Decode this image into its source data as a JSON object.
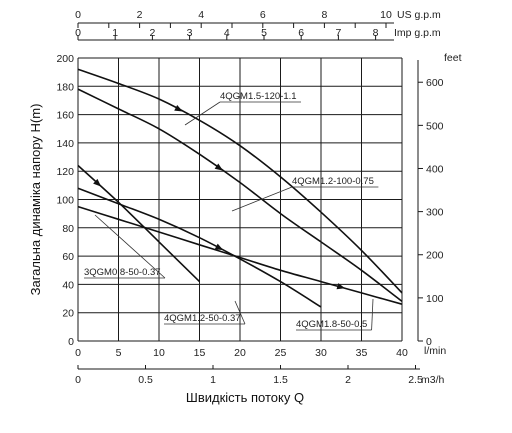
{
  "chart_data": {
    "type": "line",
    "xlabel": "Швидкість потоку Q",
    "ylabel": "Загальна динаміка напору H(m)",
    "x_unit": "l/min",
    "xlim": [
      0,
      40
    ],
    "ylim": [
      0,
      200
    ],
    "x_ticks": [
      "0",
      "5",
      "10",
      "15",
      "20",
      "25",
      "30",
      "35",
      "40"
    ],
    "y_ticks": [
      "0",
      "20",
      "40",
      "60",
      "80",
      "100",
      "120",
      "140",
      "160",
      "180",
      "200"
    ],
    "secondary_axes": {
      "us_gpm": {
        "unit": "US g.p.m",
        "ticks": [
          "0",
          "2",
          "4",
          "6",
          "8",
          "10"
        ]
      },
      "imp_gpm": {
        "unit": "Imp g.p.m",
        "ticks": [
          "0",
          "1",
          "2",
          "3",
          "4",
          "5",
          "6",
          "7",
          "8"
        ]
      },
      "m3h": {
        "unit": "m3/h",
        "ticks": [
          "0",
          "0.5",
          "1",
          "1.5",
          "2",
          "2.5"
        ]
      },
      "feet": {
        "unit": "feet",
        "ticks": [
          "0",
          "100",
          "200",
          "300",
          "400",
          "500",
          "600"
        ]
      }
    },
    "grid": true,
    "series": [
      {
        "name": "4QGM1.5-120-1.1",
        "x": [
          0,
          5,
          10,
          15,
          20,
          25,
          30,
          35,
          40
        ],
        "y": [
          192,
          182,
          171,
          156,
          138,
          116,
          91,
          64,
          34
        ]
      },
      {
        "name": "4QGM1.2-100-0.75",
        "x": [
          0,
          5,
          10,
          15,
          20,
          25,
          30,
          35,
          40
        ],
        "y": [
          178,
          164,
          150,
          132,
          112,
          90,
          70,
          50,
          28
        ]
      },
      {
        "name": "3QGM0.8-50-0.37",
        "x": [
          0,
          5,
          10,
          15
        ],
        "y": [
          124,
          98,
          70,
          42
        ]
      },
      {
        "name": "4QGM1.2-50-0.37",
        "x": [
          0,
          5,
          10,
          15,
          20,
          25,
          30
        ],
        "y": [
          108,
          97,
          86,
          73,
          58,
          42,
          24
        ]
      },
      {
        "name": "4QGM1.8-50-0.5",
        "x": [
          0,
          5,
          10,
          15,
          20,
          25,
          30,
          35,
          40
        ],
        "y": [
          95,
          86,
          77,
          68,
          59,
          50,
          42,
          34,
          26
        ]
      }
    ]
  }
}
